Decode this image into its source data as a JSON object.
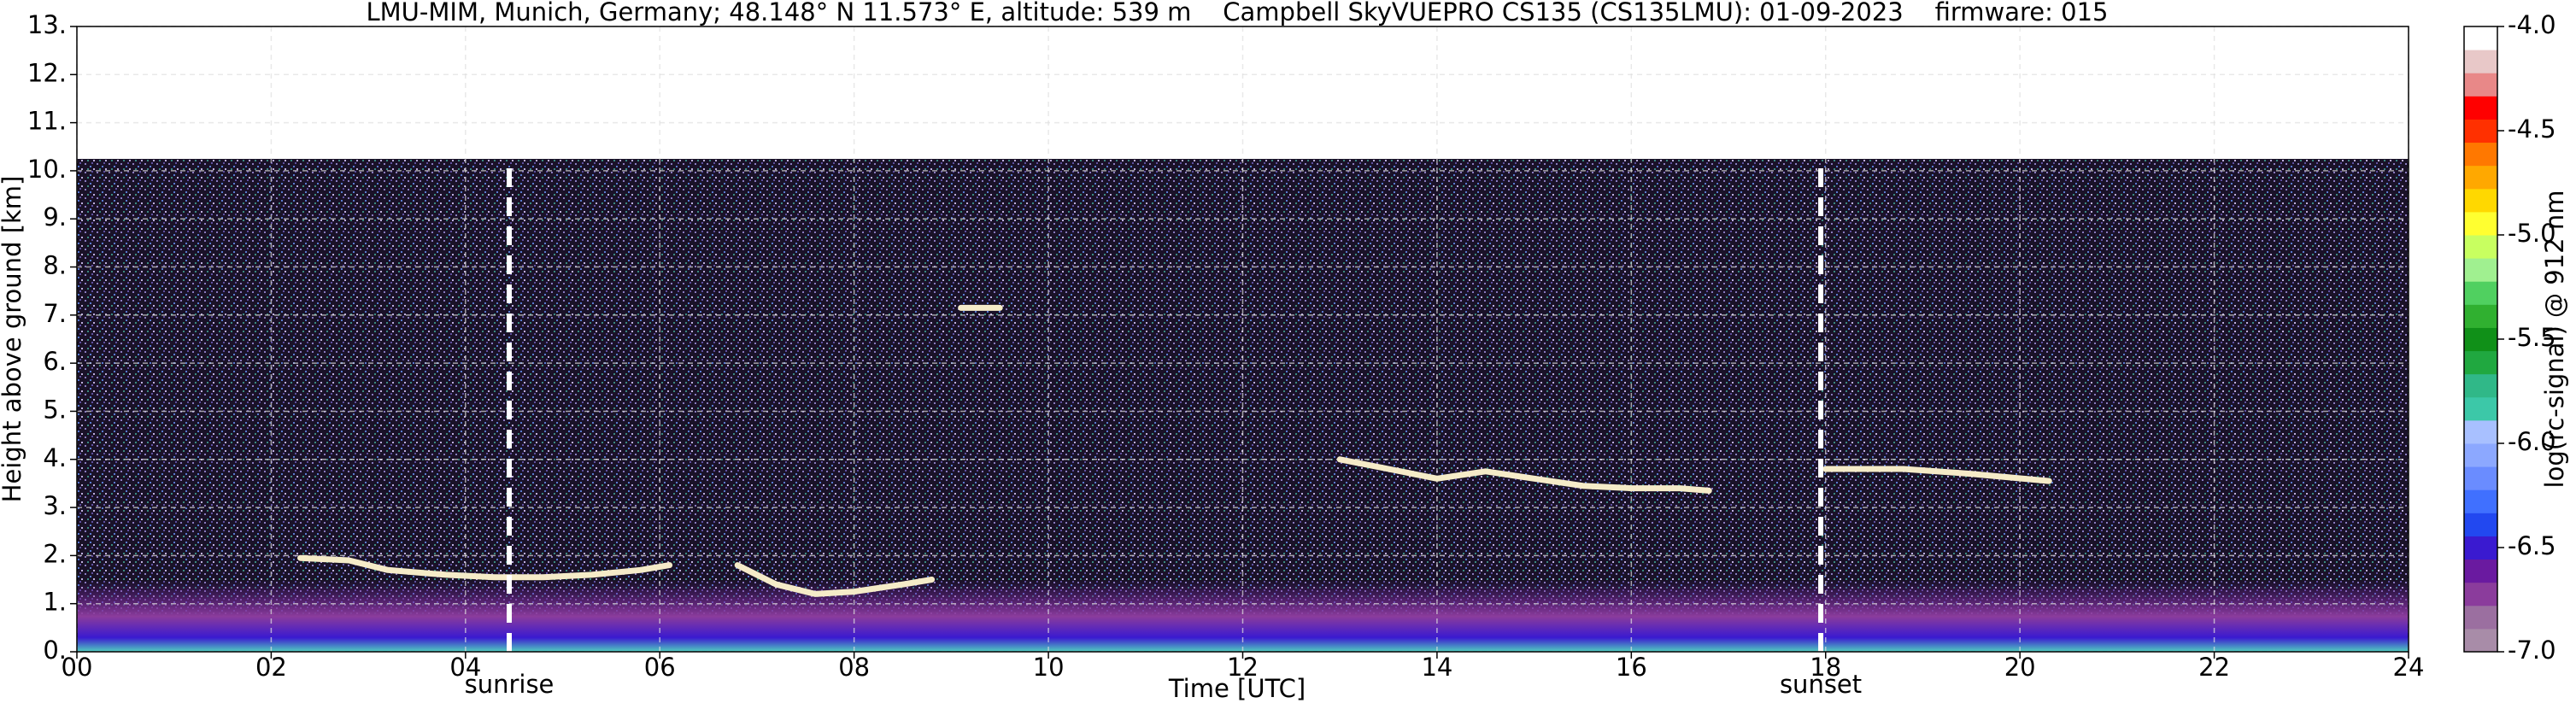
{
  "chart_data": {
    "type": "heatmap",
    "title": "LMU-MIM, Munich, Germany; 48.148° N 11.573° E, altitude: 539 m    Campbell SkyVUEPRO CS135 (CS135LMU): 01-09-2023    firmware: 015",
    "x_label": "Time [UTC]",
    "y_label": "Height above ground [km]",
    "colorbar_label": "log(rc-signal) @ 912 nm",
    "xlim": [
      0,
      24
    ],
    "xticks": [
      {
        "value": 0,
        "label": "00"
      },
      {
        "value": 2,
        "label": "02"
      },
      {
        "value": 4,
        "label": "04"
      },
      {
        "value": 6,
        "label": "06"
      },
      {
        "value": 8,
        "label": "08"
      },
      10,
      12,
      14,
      16,
      18,
      20,
      22,
      24
    ],
    "ylim": [
      0,
      13
    ],
    "yticks": [
      {
        "value": 0,
        "label": "0."
      },
      {
        "value": 1,
        "label": "1."
      },
      {
        "value": 2,
        "label": "2."
      },
      {
        "value": 3,
        "label": "3."
      },
      {
        "value": 4,
        "label": "4."
      },
      {
        "value": 5,
        "label": "5."
      },
      {
        "value": 6,
        "label": "6."
      },
      {
        "value": 7,
        "label": "7."
      },
      {
        "value": 8,
        "label": "8."
      },
      {
        "value": 9,
        "label": "9."
      },
      {
        "value": 10,
        "label": "10."
      },
      {
        "value": 11,
        "label": "11."
      },
      {
        "value": 12,
        "label": "12."
      },
      {
        "value": 13,
        "label": "13."
      }
    ],
    "clim": [
      -7,
      -4
    ],
    "cticks": [
      {
        "value": -4,
        "label": "-4.0"
      },
      -4.5,
      {
        "value": -5,
        "label": "-5.0"
      },
      -5.5,
      {
        "value": -6,
        "label": "-6.0"
      },
      -6.5,
      {
        "value": -7,
        "label": "-7.0"
      }
    ],
    "colormap": [
      "#a88ca8",
      "#9b6fa0",
      "#8b3c9c",
      "#6a1aa0",
      "#3a1ad0",
      "#2248f0",
      "#4070ff",
      "#6a8cff",
      "#8ca8ff",
      "#a8c0ff",
      "#3cc8a8",
      "#30b888",
      "#20a840",
      "#109018",
      "#30b030",
      "#50d060",
      "#a0f090",
      "#c8ff60",
      "#ffff30",
      "#ffd800",
      "#ffa800",
      "#ff7800",
      "#ff3000",
      "#ff0000",
      "#e88888",
      "#e8c8c8",
      "#ffffff"
    ],
    "grid": true,
    "annotations": [
      {
        "text": "sunrise",
        "x": 4.45
      },
      {
        "text": "sunset",
        "x": 17.95
      }
    ],
    "series": [
      {
        "color": "#f5ebc8",
        "x": [
          2.3,
          2.8,
          3.2,
          3.8,
          4.3,
          4.8,
          5.3,
          5.8,
          6.1,
          6.5,
          6.8,
          7.2,
          7.6,
          8.0,
          8.5,
          8.8,
          9.0,
          9.1,
          9.5,
          10,
          13,
          13.5,
          14,
          14.5,
          15,
          15.5,
          16,
          16.5,
          16.8,
          17.5,
          18.0,
          18.8,
          19.5,
          20.3
        ],
        "values": [
          1.95,
          1.9,
          1.7,
          1.6,
          1.55,
          1.55,
          1.6,
          1.7,
          1.8,
          null,
          1.8,
          1.4,
          1.2,
          1.25,
          1.4,
          1.5,
          null,
          7.15,
          7.15,
          null,
          4.0,
          3.8,
          3.6,
          3.75,
          3.6,
          3.45,
          3.4,
          3.4,
          3.35,
          null,
          3.8,
          3.8,
          3.7,
          3.55
        ]
      }
    ]
  }
}
